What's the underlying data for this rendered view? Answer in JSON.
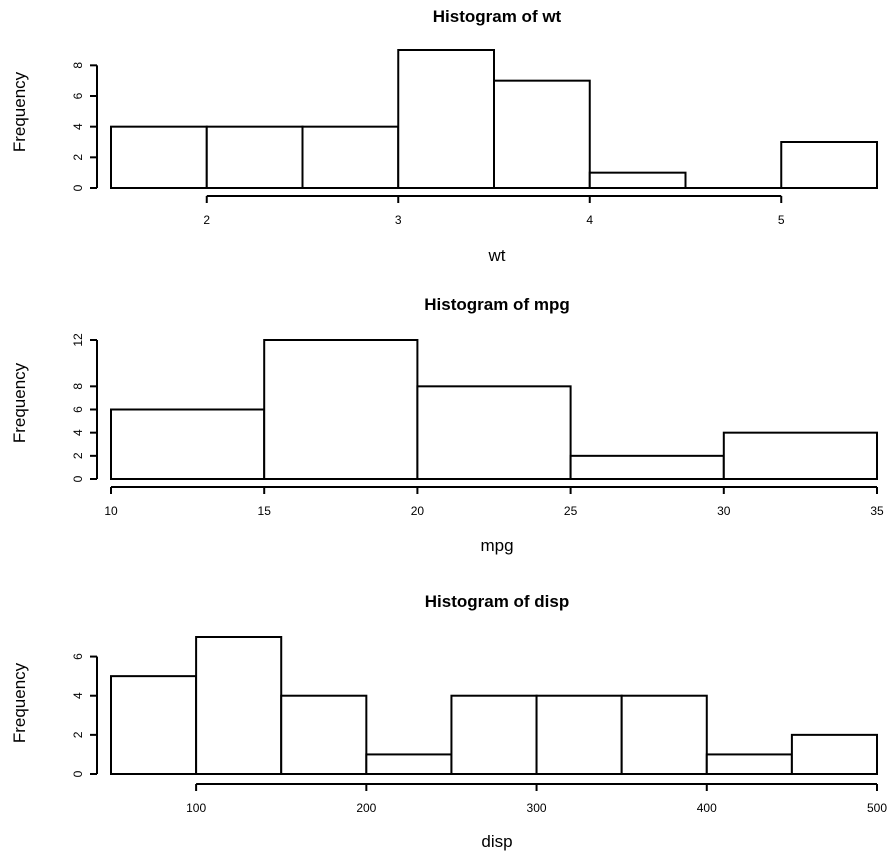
{
  "chart_data": [
    {
      "type": "bar",
      "title": "Histogram of wt",
      "xlabel": "wt",
      "ylabel": "Frequency",
      "bins": [
        [
          1.5,
          2
        ],
        [
          2,
          2.5
        ],
        [
          2.5,
          3
        ],
        [
          3,
          3.5
        ],
        [
          3.5,
          4
        ],
        [
          4,
          4.5
        ],
        [
          4.5,
          5
        ],
        [
          5,
          5.5
        ]
      ],
      "values": [
        4,
        4,
        4,
        9,
        7,
        1,
        0,
        3
      ],
      "xlim": [
        1.5,
        5.5
      ],
      "ylim": [
        0,
        9
      ],
      "x_ticks": [
        2,
        3,
        4,
        5
      ],
      "y_ticks": [
        0,
        2,
        4,
        6,
        8
      ],
      "grid": false
    },
    {
      "type": "bar",
      "title": "Histogram of mpg",
      "xlabel": "mpg",
      "ylabel": "Frequency",
      "bins": [
        [
          10,
          15
        ],
        [
          15,
          20
        ],
        [
          20,
          25
        ],
        [
          25,
          30
        ],
        [
          30,
          35
        ]
      ],
      "values": [
        6,
        12,
        8,
        2,
        4
      ],
      "xlim": [
        10,
        35
      ],
      "ylim": [
        0,
        12
      ],
      "x_ticks": [
        10,
        15,
        20,
        25,
        30,
        35
      ],
      "y_ticks": [
        0,
        2,
        4,
        6,
        8,
        12
      ],
      "grid": false
    },
    {
      "type": "bar",
      "title": "Histogram of disp",
      "xlabel": "disp",
      "ylabel": "Frequency",
      "bins": [
        [
          50,
          100
        ],
        [
          100,
          150
        ],
        [
          150,
          200
        ],
        [
          200,
          250
        ],
        [
          250,
          300
        ],
        [
          300,
          350
        ],
        [
          350,
          400
        ],
        [
          400,
          450
        ],
        [
          450,
          500
        ]
      ],
      "values": [
        5,
        7,
        4,
        1,
        4,
        4,
        4,
        1,
        2
      ],
      "xlim": [
        50,
        500
      ],
      "ylim": [
        0,
        7
      ],
      "x_ticks": [
        100,
        200,
        300,
        400,
        500
      ],
      "y_ticks": [
        0,
        2,
        4,
        6
      ],
      "grid": false
    }
  ]
}
